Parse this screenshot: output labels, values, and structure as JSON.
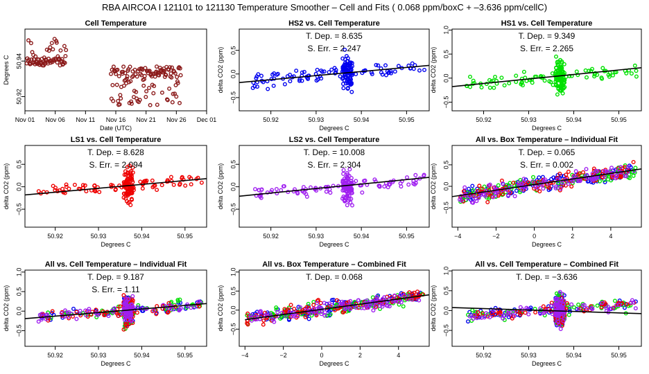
{
  "figure_title": "RBA   AIRCOA I   121101 to 121130   Temperature Smoother – Cell and Fits ( 0.068  ppm/boxC +  –3.636  ppm/cellC)",
  "colors": {
    "darkred": "#8b1a1a",
    "blue": "#0000ee",
    "green": "#00e000",
    "red": "#ee0000",
    "purple": "#a020f0",
    "fitline": "#000000"
  },
  "chart_data": [
    {
      "type": "scatter",
      "title": "Cell Temperature",
      "xlabel": "Date (UTC)",
      "ylabel": "Degrees C",
      "xlim": [
        0,
        30
      ],
      "ylim": [
        50.912,
        50.958
      ],
      "xticks": [
        0,
        5,
        10,
        15,
        20,
        25,
        30
      ],
      "xtick_labels": [
        "Nov 01",
        "Nov 06",
        "Nov 11",
        "Nov 16",
        "Nov 21",
        "Nov 26",
        "Dec 01"
      ],
      "yticks": [
        50.92,
        50.94
      ],
      "ytick_labels": [
        "50.92",
        "50.94"
      ],
      "stats": [],
      "series": [
        {
          "name": "Cell temperature",
          "color": "darkred",
          "segments": [
            [
              0.3,
              6.8,
              50.937,
              50.956
            ],
            [
              14.2,
              25.8,
              50.913,
              50.937
            ]
          ]
        }
      ]
    },
    {
      "type": "scatter",
      "title": "HS2 vs. Cell Temperature",
      "xlabel": "Degrees C",
      "ylabel": "delta CO2 (ppm)",
      "xlim": [
        50.913,
        50.955
      ],
      "ylim": [
        -0.78,
        0.95
      ],
      "xticks": [
        50.92,
        50.93,
        50.94,
        50.95
      ],
      "xtick_labels": [
        "50.92",
        "50.93",
        "50.94",
        "50.95"
      ],
      "yticks": [
        -0.5,
        0,
        0.5
      ],
      "ytick_labels": [
        "−0.5",
        "0.0",
        "0.5"
      ],
      "stats": [
        "T. Dep. =  8.635",
        "S. Err. =  2.247"
      ],
      "series": [
        {
          "name": "HS2",
          "color": "blue",
          "center": 50.937,
          "spread": 0.38
        }
      ],
      "fit": {
        "slope": 8.635,
        "x0": 50.934,
        "y0": 0.0
      }
    },
    {
      "type": "scatter",
      "title": "HS1 vs. Cell Temperature",
      "xlabel": "Degrees C",
      "ylabel": "delta CO2 (ppm)",
      "xlim": [
        50.913,
        50.955
      ],
      "ylim": [
        -0.68,
        1.02
      ],
      "xticks": [
        50.92,
        50.93,
        50.94,
        50.95
      ],
      "xtick_labels": [
        "50.92",
        "50.93",
        "50.94",
        "50.95"
      ],
      "yticks": [
        -0.5,
        0,
        0.5,
        1.0
      ],
      "ytick_labels": [
        "−0.5",
        "0.0",
        "0.5",
        "1.0"
      ],
      "stats": [
        "T. Dep. =  9.349",
        "S. Err. =  2.265"
      ],
      "series": [
        {
          "name": "HS1",
          "color": "green",
          "center": 50.937,
          "spread": 0.36
        }
      ],
      "fit": {
        "slope": 9.349,
        "x0": 50.934,
        "y0": 0.02
      }
    },
    {
      "type": "scatter",
      "title": "LS1 vs. Cell Temperature",
      "xlabel": "Degrees C",
      "ylabel": "delta CO2 (ppm)",
      "xlim": [
        50.913,
        50.955
      ],
      "ylim": [
        -0.9,
        0.92
      ],
      "xticks": [
        50.92,
        50.93,
        50.94,
        50.95
      ],
      "xtick_labels": [
        "50.92",
        "50.93",
        "50.94",
        "50.95"
      ],
      "yticks": [
        -0.5,
        0,
        0.5
      ],
      "ytick_labels": [
        "−0.5",
        "0.0",
        "0.5"
      ],
      "stats": [
        "T. Dep. =  8.628",
        "S. Err. =  2.094"
      ],
      "series": [
        {
          "name": "LS1",
          "color": "red",
          "center": 50.937,
          "spread": 0.38
        }
      ],
      "fit": {
        "slope": 8.628,
        "x0": 50.934,
        "y0": 0.0
      }
    },
    {
      "type": "scatter",
      "title": "LS2 vs. Cell Temperature",
      "xlabel": "Degrees C",
      "ylabel": "delta CO2 (ppm)",
      "xlim": [
        50.913,
        50.955
      ],
      "ylim": [
        -0.9,
        0.92
      ],
      "xticks": [
        50.92,
        50.93,
        50.94,
        50.95
      ],
      "xtick_labels": [
        "50.92",
        "50.93",
        "50.94",
        "50.95"
      ],
      "yticks": [
        -0.5,
        0,
        0.5
      ],
      "ytick_labels": [
        "−0.5",
        "0.0",
        "0.5"
      ],
      "stats": [
        "T. Dep. =  10.008",
        "S. Err. =  2.304"
      ],
      "series": [
        {
          "name": "LS2",
          "color": "purple",
          "center": 50.937,
          "spread": 0.38
        }
      ],
      "fit": {
        "slope": 10.008,
        "x0": 50.934,
        "y0": 0.0
      }
    },
    {
      "type": "scatter",
      "title": "All vs. Box Temperature – Individual Fit",
      "xlabel": "Degrees C",
      "ylabel": "delta CO2 (ppm)",
      "xlim": [
        -4.3,
        5.6
      ],
      "ylim": [
        -0.95,
        0.95
      ],
      "xticks": [
        -4,
        -2,
        0,
        2,
        4
      ],
      "xtick_labels": [
        "−4",
        "−2",
        "0",
        "2",
        "4"
      ],
      "yticks": [
        -0.5,
        0,
        0.5
      ],
      "ytick_labels": [
        "−0.5",
        "0.0",
        "0.5"
      ],
      "stats": [
        "T. Dep. =  0.065",
        "S. Err. =  0.002"
      ],
      "series": [
        {
          "name": "HS2",
          "color": "blue"
        },
        {
          "name": "HS1",
          "color": "green"
        },
        {
          "name": "LS1",
          "color": "red"
        },
        {
          "name": "LS2",
          "color": "purple"
        }
      ],
      "fit": {
        "slope": 0.065,
        "x0": 0,
        "y0": 0.04
      }
    },
    {
      "type": "scatter",
      "title": "All vs. Cell Temperature – Individual Fit",
      "xlabel": "Degrees C",
      "ylabel": "delta CO2 (ppm)",
      "xlim": [
        50.913,
        50.955
      ],
      "ylim": [
        -0.9,
        1.05
      ],
      "xticks": [
        50.92,
        50.93,
        50.94,
        50.95
      ],
      "xtick_labels": [
        "50.92",
        "50.93",
        "50.94",
        "50.95"
      ],
      "yticks": [
        -0.5,
        0,
        0.5,
        1.0
      ],
      "ytick_labels": [
        "−0.5",
        "0.0",
        "0.5",
        "1.0"
      ],
      "stats": [
        "T. Dep. =  9.187",
        "S. Err. =  1.11"
      ],
      "series": [
        {
          "name": "HS2",
          "color": "blue"
        },
        {
          "name": "HS1",
          "color": "green"
        },
        {
          "name": "LS1",
          "color": "red"
        },
        {
          "name": "LS2",
          "color": "purple"
        }
      ],
      "fit": {
        "slope": 9.187,
        "x0": 50.934,
        "y0": 0.0
      }
    },
    {
      "type": "scatter",
      "title": "All vs. Box Temperature – Combined Fit",
      "xlabel": "Degrees C",
      "ylabel": "delta CO2 (ppm)",
      "xlim": [
        -4.3,
        5.6
      ],
      "ylim": [
        -0.95,
        1.05
      ],
      "xticks": [
        -4,
        -2,
        0,
        2,
        4
      ],
      "xtick_labels": [
        "−4",
        "−2",
        "0",
        "2",
        "4"
      ],
      "yticks": [
        -0.5,
        0,
        0.5,
        1.0
      ],
      "ytick_labels": [
        "−0.5",
        "0.0",
        "0.5",
        "1.0"
      ],
      "stats": [
        "T. Dep. =  0.068"
      ],
      "series": [
        {
          "name": "HS2",
          "color": "blue"
        },
        {
          "name": "HS1",
          "color": "green"
        },
        {
          "name": "LS1",
          "color": "red"
        },
        {
          "name": "LS2",
          "color": "purple"
        }
      ],
      "fit": {
        "slope": 0.068,
        "x0": 0,
        "y0": 0.02
      }
    },
    {
      "type": "scatter",
      "title": "All vs. Cell Temperature – Combined Fit",
      "xlabel": "Degrees C",
      "ylabel": "delta CO2 (ppm)",
      "xlim": [
        50.913,
        50.955
      ],
      "ylim": [
        -0.9,
        1.02
      ],
      "xticks": [
        50.92,
        50.93,
        50.94,
        50.95
      ],
      "xtick_labels": [
        "50.92",
        "50.93",
        "50.94",
        "50.95"
      ],
      "yticks": [
        -0.5,
        0,
        0.5,
        1.0
      ],
      "ytick_labels": [
        "−0.5",
        "0.0",
        "0.5",
        "1.0"
      ],
      "stats": [
        "T. Dep. =  −3.636"
      ],
      "series": [
        {
          "name": "HS2",
          "color": "blue"
        },
        {
          "name": "HS1",
          "color": "green"
        },
        {
          "name": "LS1",
          "color": "red"
        },
        {
          "name": "LS2",
          "color": "purple"
        }
      ],
      "fit": {
        "slope": -3.636,
        "x0": 50.934,
        "y0": 0.0
      }
    }
  ]
}
